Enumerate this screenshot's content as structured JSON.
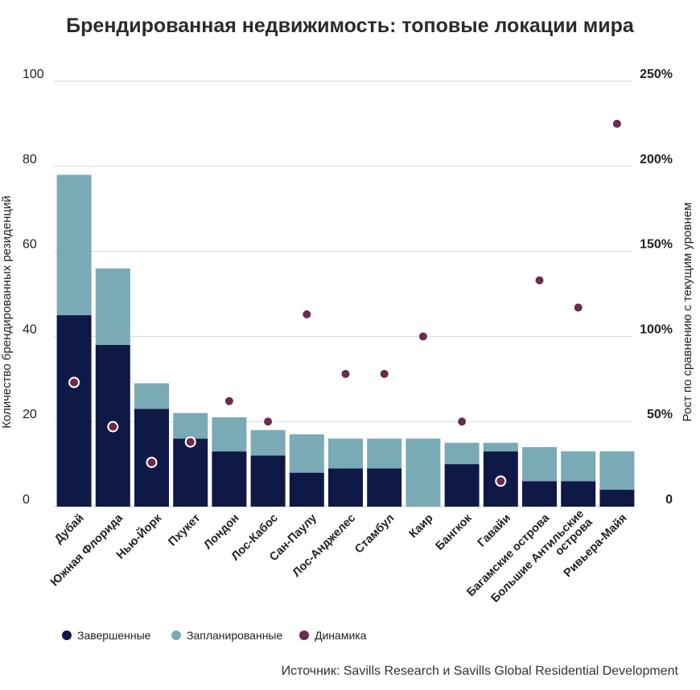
{
  "chart_data": {
    "type": "bar",
    "stacked": true,
    "title": "Брендированная недвижимость: топовые локации мира",
    "ylabel": "Количество брендированных резиденций",
    "y2label": "Рост по сравнению с текущим уровнем",
    "ylim": [
      0,
      100
    ],
    "y2lim": [
      0,
      250
    ],
    "yticks": [
      "0",
      "20",
      "40",
      "60",
      "80",
      "100"
    ],
    "y2ticks": [
      "0",
      "50%",
      "100%",
      "150%",
      "200%",
      "250%"
    ],
    "grid": true,
    "legend_position": "bottom-left",
    "categories": [
      [
        "Дубай"
      ],
      [
        "Южная Флорида"
      ],
      [
        "Нью-Йорк"
      ],
      [
        "Пхукет"
      ],
      [
        "Лондон"
      ],
      [
        "Лос-Кабос"
      ],
      [
        "Сан-Паулу"
      ],
      [
        "Лос-Анджелес"
      ],
      [
        "Стамбул"
      ],
      [
        "Каир"
      ],
      [
        "Бангкок"
      ],
      [
        "Гавайи"
      ],
      [
        "Багамские острова"
      ],
      [
        "Большие Антильские",
        "острова"
      ],
      [
        "Ривьера-Майя"
      ]
    ],
    "series": [
      {
        "name": "Завершенные",
        "kind": "bar",
        "axis": "left",
        "color": "#0e1a45",
        "values": [
          45,
          38,
          23,
          16,
          13,
          12,
          8,
          9,
          9,
          0,
          10,
          13,
          6,
          6,
          4
        ]
      },
      {
        "name": "Запланированные",
        "kind": "bar",
        "axis": "left",
        "color": "#7aaab5",
        "values": [
          33,
          18,
          6,
          6,
          8,
          6,
          9,
          7,
          7,
          16,
          5,
          2,
          8,
          7,
          9
        ]
      },
      {
        "name": "Динамика",
        "kind": "scatter",
        "axis": "right",
        "color": "#6b2a4e",
        "values": [
          73,
          47,
          26,
          38,
          62,
          50,
          113,
          78,
          78,
          100,
          50,
          15,
          133,
          117,
          225
        ]
      }
    ],
    "source": "Источник: Savills Research и Savills Global Residential Development"
  }
}
